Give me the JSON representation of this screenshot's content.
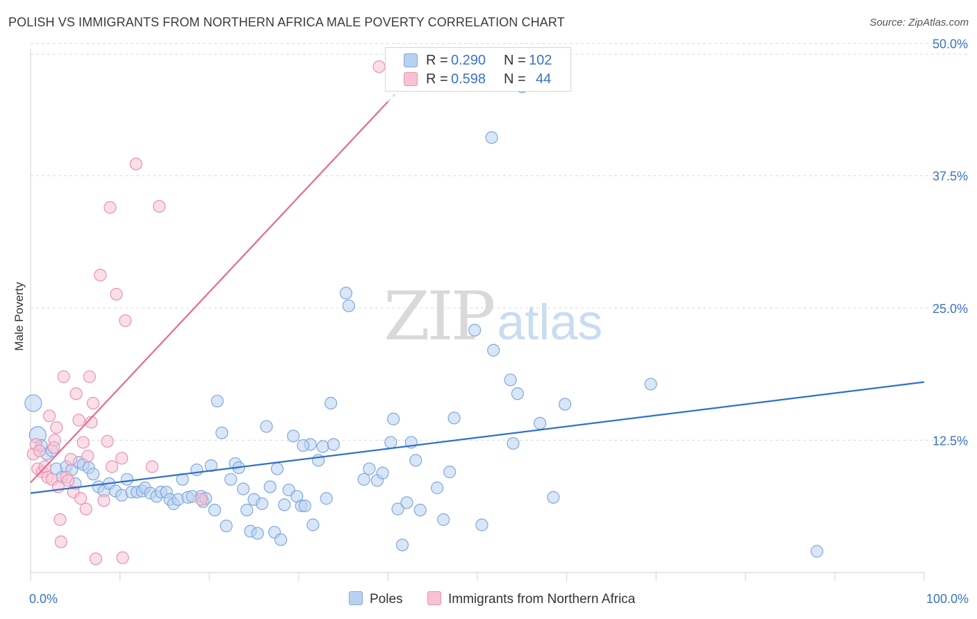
{
  "header": {
    "title": "POLISH VS IMMIGRANTS FROM NORTHERN AFRICA MALE POVERTY CORRELATION CHART",
    "source": "Source: ZipAtlas.com"
  },
  "watermark": {
    "part1": "ZIP",
    "part2": "atlas"
  },
  "colors": {
    "blue_fill": "#b9d1f0",
    "blue_stroke": "#7fa8de",
    "blue_line": "#2e6fd0",
    "pink_fill": "#f7c3d3",
    "pink_stroke": "#ea91ae",
    "pink_line": "#e8688f",
    "tick_text": "#3a73c9",
    "grid": "#d9d9d9"
  },
  "legend": {
    "rows": [
      {
        "r_label": "R =",
        "r_value": "0.290",
        "n_label": "N =",
        "n_value": "102",
        "color": "blue"
      },
      {
        "r_label": "R =",
        "r_value": "0.598",
        "n_label": "N =",
        "n_value": "44",
        "color": "pink"
      }
    ]
  },
  "bottom_legend": [
    {
      "label": "Poles",
      "color": "blue"
    },
    {
      "label": "Immigrants from Northern Africa",
      "color": "pink"
    }
  ],
  "chart_data": {
    "type": "scatter",
    "title": "POLISH VS IMMIGRANTS FROM NORTHERN AFRICA MALE POVERTY CORRELATION CHART",
    "xlabel": "",
    "ylabel": "Male Poverty",
    "xlim": [
      0,
      100
    ],
    "ylim": [
      0,
      52
    ],
    "x_tick_labels": [
      {
        "value": 0,
        "label": "0.0%"
      },
      {
        "value": 100,
        "label": "100.0%"
      }
    ],
    "y_ticks": [
      {
        "value": 12.5,
        "label": "12.5%"
      },
      {
        "value": 25.0,
        "label": "25.0%"
      },
      {
        "value": 37.5,
        "label": "37.5%"
      },
      {
        "value": 50.0,
        "label": "50.0%"
      }
    ],
    "grid": true,
    "legend_position": "top-center",
    "series": [
      {
        "name": "Poles",
        "r": 0.29,
        "n": 102,
        "trend": {
          "x": [
            0,
            100
          ],
          "y": [
            7.5,
            18.0
          ]
        },
        "points": [
          [
            0.3,
            16.0
          ],
          [
            0.8,
            13.0
          ],
          [
            1.2,
            12.0
          ],
          [
            1.8,
            11.2
          ],
          [
            2.4,
            11.5
          ],
          [
            2.9,
            9.8
          ],
          [
            3.5,
            9.0
          ],
          [
            4.0,
            10.0
          ],
          [
            4.6,
            9.7
          ],
          [
            5.0,
            8.4
          ],
          [
            5.4,
            10.4
          ],
          [
            5.9,
            10.2
          ],
          [
            6.5,
            9.9
          ],
          [
            7.0,
            9.3
          ],
          [
            7.6,
            8.1
          ],
          [
            8.2,
            7.7
          ],
          [
            8.8,
            8.4
          ],
          [
            9.5,
            7.7
          ],
          [
            10.2,
            7.3
          ],
          [
            10.8,
            8.8
          ],
          [
            11.3,
            7.6
          ],
          [
            11.9,
            7.6
          ],
          [
            12.5,
            7.7
          ],
          [
            12.8,
            8.0
          ],
          [
            13.4,
            7.5
          ],
          [
            14.1,
            7.2
          ],
          [
            14.6,
            7.6
          ],
          [
            15.2,
            7.6
          ],
          [
            15.6,
            6.9
          ],
          [
            16.0,
            6.5
          ],
          [
            16.5,
            6.9
          ],
          [
            17.0,
            8.8
          ],
          [
            17.6,
            7.1
          ],
          [
            18.1,
            7.2
          ],
          [
            18.6,
            9.7
          ],
          [
            19.1,
            7.2
          ],
          [
            19.3,
            6.7
          ],
          [
            19.6,
            7.0
          ],
          [
            20.2,
            10.1
          ],
          [
            20.6,
            5.9
          ],
          [
            20.9,
            16.2
          ],
          [
            21.4,
            13.2
          ],
          [
            21.9,
            4.4
          ],
          [
            22.4,
            8.8
          ],
          [
            22.9,
            10.3
          ],
          [
            23.3,
            9.9
          ],
          [
            23.8,
            7.9
          ],
          [
            24.2,
            5.9
          ],
          [
            24.6,
            3.9
          ],
          [
            25.0,
            6.9
          ],
          [
            25.4,
            3.7
          ],
          [
            25.9,
            6.5
          ],
          [
            26.4,
            13.8
          ],
          [
            26.8,
            8.1
          ],
          [
            27.3,
            3.8
          ],
          [
            27.6,
            9.8
          ],
          [
            28.0,
            3.1
          ],
          [
            28.4,
            6.4
          ],
          [
            28.9,
            7.8
          ],
          [
            29.4,
            12.9
          ],
          [
            29.8,
            7.2
          ],
          [
            30.3,
            6.3
          ],
          [
            30.7,
            6.3
          ],
          [
            31.3,
            12.1
          ],
          [
            31.6,
            4.5
          ],
          [
            32.2,
            10.6
          ],
          [
            32.7,
            11.9
          ],
          [
            33.1,
            7.0
          ],
          [
            33.6,
            16.0
          ],
          [
            33.9,
            12.1
          ],
          [
            35.3,
            26.4
          ],
          [
            35.6,
            25.2
          ],
          [
            37.3,
            8.8
          ],
          [
            37.9,
            9.8
          ],
          [
            38.8,
            8.7
          ],
          [
            39.4,
            9.4
          ],
          [
            40.3,
            12.3
          ],
          [
            40.6,
            14.5
          ],
          [
            41.1,
            6.0
          ],
          [
            41.6,
            2.6
          ],
          [
            42.1,
            6.6
          ],
          [
            42.6,
            12.3
          ],
          [
            43.1,
            10.6
          ],
          [
            43.6,
            5.9
          ],
          [
            45.5,
            8.0
          ],
          [
            46.2,
            5.0
          ],
          [
            46.9,
            9.5
          ],
          [
            47.4,
            14.6
          ],
          [
            49.7,
            22.9
          ],
          [
            50.5,
            4.5
          ],
          [
            51.6,
            41.1
          ],
          [
            51.8,
            21.0
          ],
          [
            53.7,
            18.2
          ],
          [
            54.0,
            12.2
          ],
          [
            54.5,
            16.9
          ],
          [
            57.0,
            14.1
          ],
          [
            58.5,
            7.1
          ],
          [
            59.8,
            15.9
          ],
          [
            69.4,
            17.8
          ],
          [
            88.0,
            2.0
          ],
          [
            55.0,
            45.9
          ],
          [
            30.5,
            12.0
          ]
        ]
      },
      {
        "name": "Immigrants from Northern Africa",
        "r": 0.598,
        "n": 44,
        "trend": {
          "x": [
            0,
            40
          ],
          "y": [
            8.5,
            44.5
          ]
        },
        "trend_dashed": {
          "x": [
            40,
            43
          ],
          "y": [
            44.5,
            47.2
          ]
        },
        "points": [
          [
            0.3,
            11.2
          ],
          [
            0.6,
            12.1
          ],
          [
            0.8,
            9.8
          ],
          [
            1.0,
            11.5
          ],
          [
            1.3,
            9.5
          ],
          [
            1.6,
            10.0
          ],
          [
            1.9,
            9.0
          ],
          [
            2.1,
            14.8
          ],
          [
            2.4,
            8.8
          ],
          [
            2.7,
            12.5
          ],
          [
            2.9,
            13.7
          ],
          [
            3.1,
            8.1
          ],
          [
            3.3,
            5.0
          ],
          [
            3.4,
            2.9
          ],
          [
            3.7,
            18.5
          ],
          [
            4.0,
            9.0
          ],
          [
            4.2,
            8.7
          ],
          [
            4.5,
            10.7
          ],
          [
            4.8,
            7.6
          ],
          [
            5.1,
            16.9
          ],
          [
            5.4,
            14.4
          ],
          [
            5.6,
            7.0
          ],
          [
            5.9,
            12.3
          ],
          [
            6.2,
            6.0
          ],
          [
            6.4,
            11.0
          ],
          [
            6.8,
            14.2
          ],
          [
            7.0,
            16.0
          ],
          [
            7.3,
            1.3
          ],
          [
            7.8,
            28.1
          ],
          [
            8.2,
            6.8
          ],
          [
            8.6,
            12.4
          ],
          [
            8.9,
            34.5
          ],
          [
            9.1,
            10.0
          ],
          [
            9.6,
            26.3
          ],
          [
            10.2,
            10.8
          ],
          [
            10.3,
            1.4
          ],
          [
            10.6,
            23.8
          ],
          [
            11.8,
            38.6
          ],
          [
            13.6,
            10.0
          ],
          [
            14.4,
            34.6
          ],
          [
            19.1,
            6.9
          ],
          [
            39.0,
            47.8
          ],
          [
            6.6,
            18.5
          ],
          [
            2.6,
            11.8
          ]
        ]
      }
    ]
  }
}
